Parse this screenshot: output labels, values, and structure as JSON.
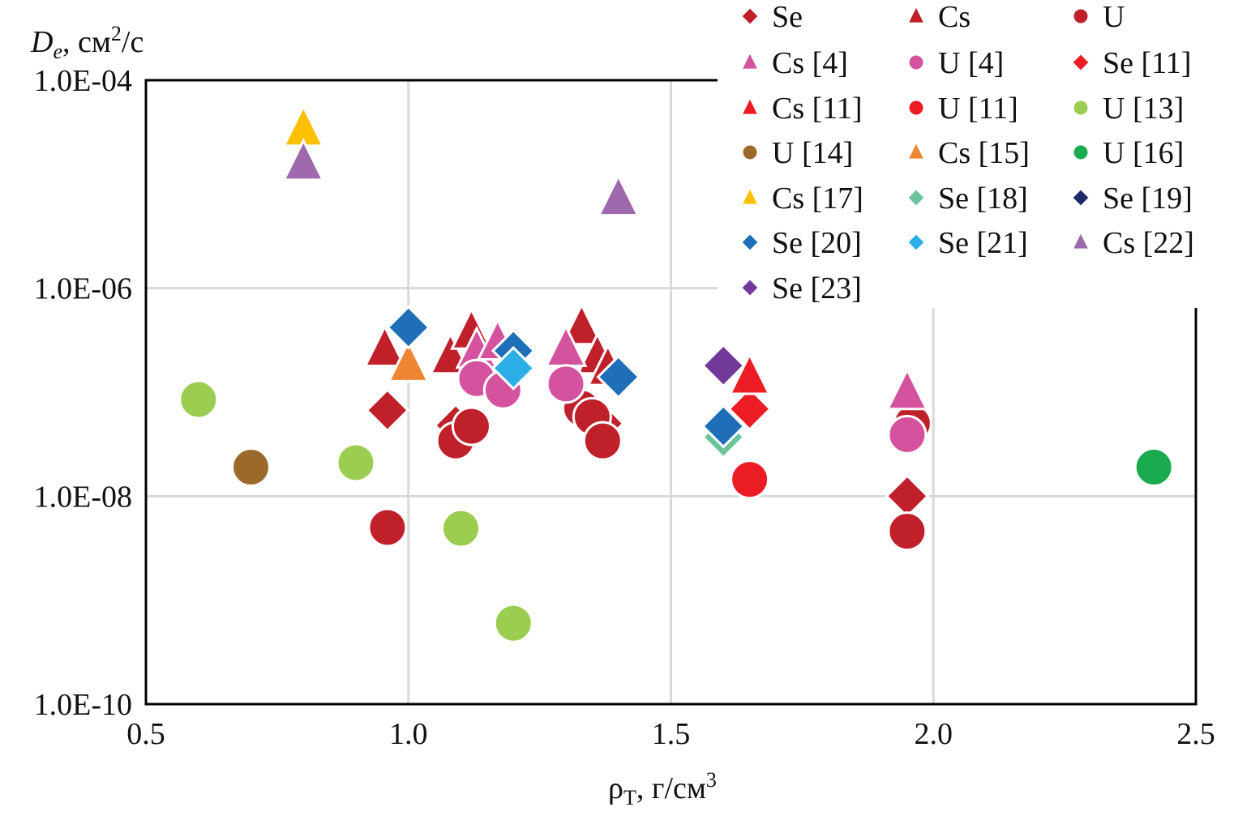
{
  "chart_data": {
    "type": "scatter",
    "title": "",
    "ylabel": {
      "main": "D",
      "sub": "e",
      "unit": ", см",
      "sup": "2",
      "tail": "/с"
    },
    "xlabel": {
      "main": "ρ",
      "sub": "T",
      "unit": ", г/см",
      "sup": "3"
    },
    "xlim": [
      0.5,
      2.5
    ],
    "ylim": [
      1e-10,
      0.0001
    ],
    "yscale": "log",
    "grid": true,
    "legend": "top-right",
    "x_ticks": [
      "0.5",
      "1.0",
      "1.5",
      "2.0",
      "2.5"
    ],
    "y_ticks": [
      "1.0E-04",
      "1.0E-06",
      "1.0E-08",
      "1.0E-10"
    ],
    "series": [
      {
        "name": "Se",
        "marker": "diamond",
        "color": "#c0202a",
        "points": [
          [
            0.96,
            6.7e-08
          ],
          [
            1.95,
            1e-08
          ],
          [
            1.09,
            4.8e-08
          ],
          [
            1.37,
            5e-08
          ]
        ]
      },
      {
        "name": "Cs",
        "marker": "triangle",
        "color": "#c0202a",
        "points": [
          [
            0.955,
            2.6e-07
          ],
          [
            1.08,
            2.2e-07
          ],
          [
            1.12,
            3.8e-07
          ],
          [
            1.33,
            4.2e-07
          ],
          [
            1.36,
            2.2e-07
          ],
          [
            1.38,
            1.7e-07
          ]
        ]
      },
      {
        "name": "U",
        "marker": "circle",
        "color": "#c0202a",
        "points": [
          [
            0.96,
            5e-09
          ],
          [
            1.95,
            4.6e-09
          ],
          [
            1.09,
            3.4e-08
          ],
          [
            1.12,
            4.7e-08
          ],
          [
            1.33,
            7e-08
          ],
          [
            1.35,
            5.8e-08
          ],
          [
            1.37,
            3.4e-08
          ],
          [
            1.96,
            5e-08
          ]
        ]
      },
      {
        "name": "Cs [4]",
        "marker": "triangle",
        "color": "#d5529f",
        "points": [
          [
            1.13,
            2.5e-07
          ],
          [
            1.17,
            3e-07
          ],
          [
            1.3,
            2.6e-07
          ],
          [
            1.95,
            1e-07
          ]
        ]
      },
      {
        "name": "U [4]",
        "marker": "circle",
        "color": "#d5529f",
        "points": [
          [
            1.13,
            1.35e-07
          ],
          [
            1.18,
            1.05e-07
          ],
          [
            1.3,
            1.2e-07
          ],
          [
            1.95,
            3.9e-08
          ]
        ]
      },
      {
        "name": "Se [11]",
        "marker": "diamond",
        "color": "#ec1c24",
        "points": [
          [
            1.65,
            6.9e-08
          ]
        ]
      },
      {
        "name": "Cs [11]",
        "marker": "triangle",
        "color": "#ec1c24",
        "points": [
          [
            1.65,
            1.4e-07
          ]
        ]
      },
      {
        "name": "U [11]",
        "marker": "circle",
        "color": "#ec1c24",
        "points": [
          [
            1.65,
            1.45e-08
          ]
        ]
      },
      {
        "name": "U [13]",
        "marker": "circle",
        "color": "#9acd50",
        "points": [
          [
            0.6,
            8.5e-08
          ],
          [
            0.9,
            2.1e-08
          ],
          [
            1.1,
            4.9e-09
          ],
          [
            1.2,
            6e-10
          ]
        ]
      },
      {
        "name": "U [14]",
        "marker": "circle",
        "color": "#9b6a2a",
        "points": [
          [
            0.7,
            1.9e-08
          ]
        ]
      },
      {
        "name": "Cs [15]",
        "marker": "triangle",
        "color": "#ef8533",
        "points": [
          [
            1.0,
            1.85e-07
          ]
        ]
      },
      {
        "name": "U [16]",
        "marker": "circle",
        "color": "#1aab50",
        "points": [
          [
            2.42,
            1.9e-08
          ]
        ]
      },
      {
        "name": "Cs [17]",
        "marker": "triangle",
        "color": "#fec000",
        "points": [
          [
            0.8,
            3.4e-05
          ]
        ]
      },
      {
        "name": "Se [18]",
        "marker": "diamond",
        "color": "#6cc49a",
        "points": [
          [
            1.6,
            3.7e-08
          ]
        ]
      },
      {
        "name": "Se [19]",
        "marker": "diamond",
        "color": "#1f2a6b",
        "points": []
      },
      {
        "name": "Se [20]",
        "marker": "diamond",
        "color": "#1f6fb8",
        "points": [
          [
            1.0,
            4.2e-07
          ],
          [
            1.2,
            2.5e-07
          ],
          [
            1.4,
            1.4e-07
          ],
          [
            1.6,
            4.7e-08
          ]
        ]
      },
      {
        "name": "Se [21]",
        "marker": "diamond",
        "color": "#2bafe6",
        "points": [
          [
            1.2,
            1.7e-07
          ]
        ]
      },
      {
        "name": "Cs [22]",
        "marker": "triangle",
        "color": "#9e6aad",
        "points": [
          [
            0.8,
            1.6e-05
          ],
          [
            1.4,
            7.3e-06
          ]
        ]
      },
      {
        "name": "Se [23]",
        "marker": "diamond",
        "color": "#70399a",
        "points": [
          [
            1.6,
            1.8e-07
          ]
        ]
      }
    ]
  }
}
